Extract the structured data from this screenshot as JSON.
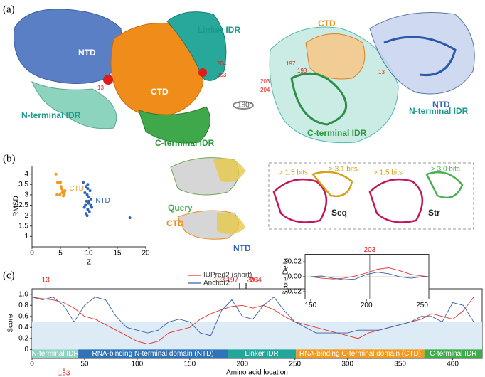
{
  "panels": {
    "a": "(a)",
    "b": "(b)",
    "c": "(c)"
  },
  "structure_a": {
    "left": {
      "ntd": "NTD",
      "ctd": "CTD",
      "linker": "Linker IDR",
      "res204": "204",
      "res203": "203",
      "res13": "13",
      "nidr": "N-terminal IDR",
      "cidr": "C-terminal IDR"
    },
    "rotation": "180°",
    "right": {
      "ctd": "CTD",
      "res197": "197",
      "res193": "193",
      "res203": "203",
      "res204": "204",
      "res13": "13",
      "ntd": "NTD",
      "nidr": "N-terminal IDR",
      "cidr": "C-terminal IDR"
    }
  },
  "structure_b": {
    "query": "Query",
    "ctd": "CTD",
    "ntd": "NTD",
    "seq_bits1": "> 1.5 bits",
    "seq_bits2": "> 3.1 bits",
    "seq": "Seq",
    "str_bits1": "> 1.5 bits",
    "str_bits2": "> 3.0 bits",
    "str": "Str"
  },
  "chart_data": [
    {
      "type": "scatter",
      "xlabel": "Z",
      "ylabel": "RMSD",
      "xlim": [
        0,
        20
      ],
      "xticks": [
        0,
        5,
        10,
        15,
        20
      ],
      "ylim": [
        0.5,
        4.4
      ],
      "yticks": [
        1,
        1.5,
        2,
        2.5,
        3,
        3.5,
        4
      ],
      "series": [
        {
          "name": "CTD",
          "color": "#f39a1e",
          "x": [
            4.2,
            4.5,
            4.8,
            5.0,
            5.2,
            5.4,
            5.3,
            5.6,
            5.5,
            5.8,
            5.1,
            5.7,
            4.4,
            4.9
          ],
          "y": [
            4.0,
            3.6,
            3.6,
            3.6,
            3.3,
            3.2,
            3.1,
            3.0,
            2.95,
            3.2,
            3.4,
            3.1,
            3.0,
            3.0
          ]
        },
        {
          "name": "NTD",
          "color": "#2f62b8",
          "x": [
            9.0,
            9.5,
            9.8,
            10.2,
            9.3,
            9.7,
            10.0,
            10.4,
            9.6,
            9.9,
            10.3,
            9.2,
            9.8,
            10.1,
            9.5,
            10.5,
            9.7,
            9.4,
            10.0,
            9.8,
            17.2
          ],
          "y": [
            3.6,
            3.4,
            3.3,
            3.2,
            3.1,
            3.0,
            2.9,
            2.8,
            2.7,
            2.6,
            2.5,
            2.4,
            2.3,
            2.2,
            2.1,
            2.4,
            2.0,
            2.5,
            2.7,
            3.5,
            1.9
          ]
        }
      ]
    },
    {
      "type": "line",
      "xlabel": "Amino acid location",
      "ylabel": "Score",
      "xlim": [
        0,
        428
      ],
      "xticks": [
        0,
        50,
        100,
        150,
        200,
        250,
        300,
        350,
        400
      ],
      "ylim": [
        -0.15,
        1.1
      ],
      "yticks": [
        0,
        0.2,
        0.4,
        0.6,
        0.8,
        {
          "value": 1.0,
          "label": "1.0"
        }
      ],
      "threshold": 0.5,
      "x": [
        0,
        10,
        20,
        30,
        40,
        50,
        60,
        70,
        80,
        90,
        100,
        110,
        120,
        130,
        140,
        150,
        160,
        170,
        180,
        190,
        200,
        210,
        220,
        230,
        240,
        250,
        260,
        270,
        280,
        290,
        300,
        310,
        320,
        330,
        340,
        350,
        360,
        370,
        380,
        390,
        400,
        410,
        420
      ],
      "series": [
        {
          "name": "IUPred2 (short)",
          "color": "#e8322c",
          "values": [
            0.95,
            0.92,
            0.9,
            0.85,
            0.75,
            0.6,
            0.55,
            0.45,
            0.35,
            0.25,
            0.15,
            0.1,
            0.15,
            0.3,
            0.35,
            0.4,
            0.55,
            0.65,
            0.72,
            0.78,
            0.8,
            0.75,
            0.8,
            0.72,
            0.6,
            0.5,
            0.45,
            0.4,
            0.35,
            0.3,
            0.25,
            0.2,
            0.3,
            0.35,
            0.4,
            0.45,
            0.5,
            0.55,
            0.65,
            0.6,
            0.55,
            0.7,
            0.95
          ]
        },
        {
          "name": "Anchor2",
          "color": "#3a5fa8",
          "values": [
            0.95,
            0.9,
            0.95,
            0.8,
            0.5,
            0.8,
            0.95,
            0.9,
            0.6,
            0.4,
            0.35,
            0.3,
            0.35,
            0.5,
            0.55,
            0.5,
            0.3,
            0.25,
            0.7,
            0.9,
            0.6,
            0.55,
            0.8,
            0.95,
            0.7,
            0.5,
            0.4,
            0.3,
            0.3,
            0.3,
            0.3,
            0.35,
            0.35,
            0.35,
            0.4,
            0.45,
            0.5,
            0.6,
            0.6,
            0.5,
            0.85,
            0.8,
            0.5
          ]
        }
      ],
      "annotations": [
        {
          "text": "13",
          "x": 13
        },
        {
          "text": "193",
          "x": 193
        },
        {
          "text": "197",
          "x": 197
        },
        {
          "text": "203",
          "x": 203
        },
        {
          "text": "204",
          "x": 204
        }
      ],
      "bottom_annotation": "153",
      "domains": [
        {
          "name": "N-terminal IDR",
          "start": 0,
          "end": 44,
          "color": "#8fd3c1"
        },
        {
          "name": "RNA-binding N-terminal domain (NTD)",
          "start": 44,
          "end": 186,
          "color": "#2f73b8"
        },
        {
          "name": "Linker IDR",
          "start": 186,
          "end": 251,
          "color": "#23a69a"
        },
        {
          "name": "RNA-binding C-terminal domain (CTD)",
          "start": 251,
          "end": 373,
          "color": "#f39a1e"
        },
        {
          "name": "C-terminal IDR",
          "start": 373,
          "end": 428,
          "color": "#3cae49"
        }
      ]
    },
    {
      "type": "line",
      "ylabel": "Score Delta",
      "xlim": [
        145,
        256
      ],
      "xticks": [
        150,
        200,
        250
      ],
      "ylim": [
        -0.03,
        0.03
      ],
      "yticks": [
        {
          "value": -0.02,
          "label": "-0.02"
        },
        {
          "value": 0,
          "label": "0.00"
        },
        0.02
      ],
      "marker": {
        "text": "203",
        "x": 203
      },
      "x": [
        150,
        160,
        170,
        180,
        190,
        200,
        210,
        220,
        230,
        240,
        250,
        256
      ],
      "series": [
        {
          "color": "#e8322c",
          "values": [
            0,
            -0.002,
            -0.003,
            -0.002,
            0.001,
            0.005,
            0.01,
            0.012,
            0.008,
            0.003,
            0.001,
            0
          ]
        },
        {
          "color": "#3a5fa8",
          "values": [
            0,
            0.001,
            -0.002,
            -0.004,
            -0.003,
            0.003,
            0.006,
            0.004,
            0,
            -0.002,
            0,
            0
          ]
        }
      ]
    }
  ]
}
